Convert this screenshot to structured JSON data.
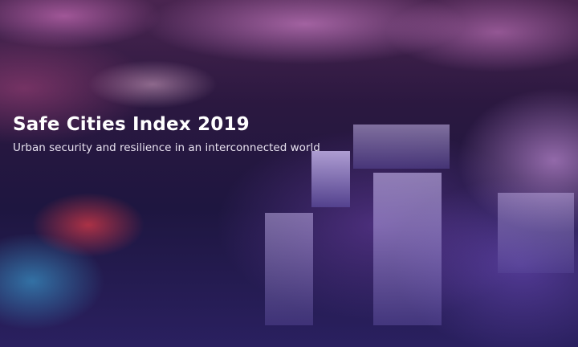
{
  "cover": {
    "title": "Safe Cities Index 2019",
    "subtitle": "Urban security and resilience in an interconnected world"
  }
}
